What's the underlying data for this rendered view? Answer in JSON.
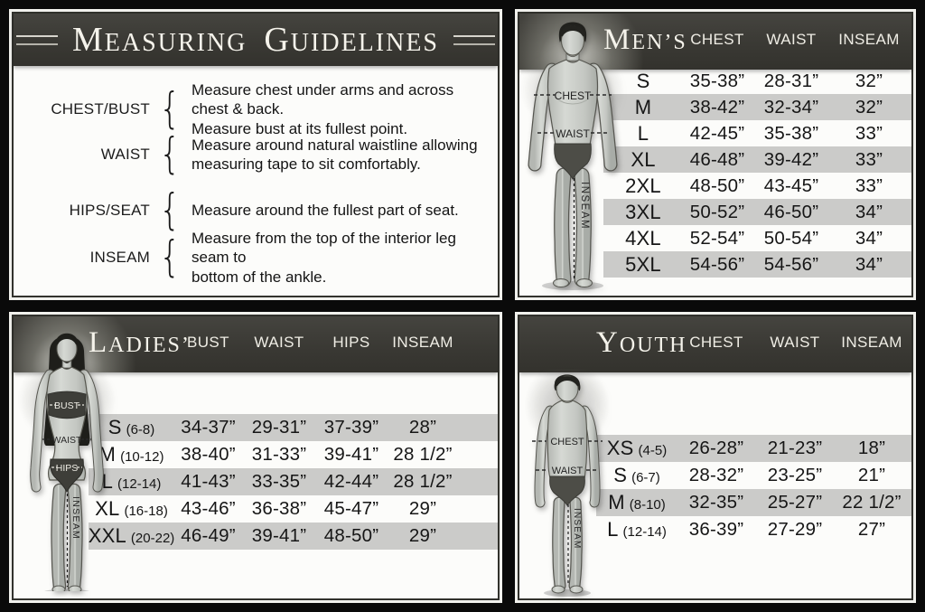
{
  "colors": {
    "canvas": "#0a0a0a",
    "panel_bg": "#fcfcfa",
    "band_charcoal": "#3b3b35",
    "stripe_gray": "#cbcbc9",
    "title_cream": "#f5f3eb",
    "text_dark": "#161616"
  },
  "guidelines": {
    "title": "Measuring Guidelines",
    "items": [
      {
        "label": "CHEST/BUST",
        "line1": "Measure chest under arms and across chest & back.",
        "line2": "Measure bust at its fullest point."
      },
      {
        "label": "WAIST",
        "line1": "Measure around natural waistline allowing",
        "line2": "measuring tape to sit comfortably."
      },
      {
        "label": "HIPS/SEAT",
        "line1": "Measure around the fullest part of seat.",
        "line2": ""
      },
      {
        "label": "INSEAM",
        "line1": "Measure from the top of the interior leg seam to",
        "line2": "bottom of the ankle."
      }
    ]
  },
  "mens": {
    "title": "Men’s",
    "columns": [
      "CHEST",
      "WAIST",
      "INSEAM"
    ],
    "figure": {
      "chest": "CHEST",
      "waist": "WAIST",
      "inseam": "INSEAM"
    },
    "rows": [
      {
        "size": "S",
        "chest": "35-38”",
        "waist": "28-31”",
        "inseam": "32”"
      },
      {
        "size": "M",
        "chest": "38-42”",
        "waist": "32-34”",
        "inseam": "32”"
      },
      {
        "size": "L",
        "chest": "42-45”",
        "waist": "35-38”",
        "inseam": "33”"
      },
      {
        "size": "XL",
        "chest": "46-48”",
        "waist": "39-42”",
        "inseam": "33”"
      },
      {
        "size": "2XL",
        "chest": "48-50”",
        "waist": "43-45”",
        "inseam": "33”"
      },
      {
        "size": "3XL",
        "chest": "50-52”",
        "waist": "46-50”",
        "inseam": "34”"
      },
      {
        "size": "4XL",
        "chest": "52-54”",
        "waist": "50-54”",
        "inseam": "34”"
      },
      {
        "size": "5XL",
        "chest": "54-56”",
        "waist": "54-56”",
        "inseam": "34”"
      }
    ]
  },
  "ladies": {
    "title": "Ladies’",
    "columns": [
      "BUST",
      "WAIST",
      "HIPS",
      "INSEAM"
    ],
    "figure": {
      "bust": "BUST",
      "waist": "WAIST",
      "hips": "HIPS",
      "inseam": "INSEAM"
    },
    "rows": [
      {
        "size": "S",
        "range": "(6-8)",
        "bust": "34-37”",
        "waist": "29-31”",
        "hips": "37-39”",
        "inseam": "28”"
      },
      {
        "size": "M",
        "range": "(10-12)",
        "bust": "38-40”",
        "waist": "31-33”",
        "hips": "39-41”",
        "inseam": "28 1/2”"
      },
      {
        "size": "L",
        "range": "(12-14)",
        "bust": "41-43”",
        "waist": "33-35”",
        "hips": "42-44”",
        "inseam": "28 1/2”"
      },
      {
        "size": "XL",
        "range": "(16-18)",
        "bust": "43-46”",
        "waist": "36-38”",
        "hips": "45-47”",
        "inseam": "29”"
      },
      {
        "size": "XXL",
        "range": "(20-22)",
        "bust": "46-49”",
        "waist": "39-41”",
        "hips": "48-50”",
        "inseam": "29”"
      }
    ]
  },
  "youth": {
    "title": "Youth",
    "columns": [
      "CHEST",
      "WAIST",
      "INSEAM"
    ],
    "figure": {
      "chest": "CHEST",
      "waist": "WAIST",
      "inseam": "INSEAM"
    },
    "rows": [
      {
        "size": "XS",
        "range": "(4-5)",
        "chest": "26-28”",
        "waist": "21-23”",
        "inseam": "18”"
      },
      {
        "size": "S",
        "range": "(6-7)",
        "chest": "28-32”",
        "waist": "23-25”",
        "inseam": "21”"
      },
      {
        "size": "M",
        "range": "(8-10)",
        "chest": "32-35”",
        "waist": "25-27”",
        "inseam": "22 1/2”"
      },
      {
        "size": "L",
        "range": "(12-14)",
        "chest": "36-39”",
        "waist": "27-29”",
        "inseam": "27”"
      }
    ]
  }
}
